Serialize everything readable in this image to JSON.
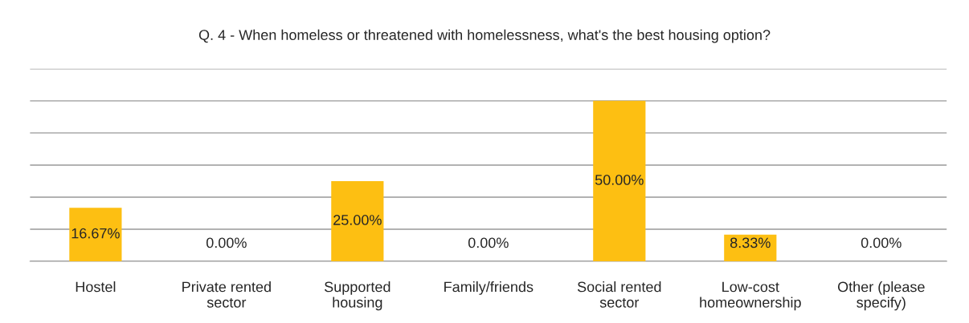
{
  "chart_data": {
    "type": "bar",
    "title": "Q. 4 - When homeless or threatened with homelessness, what's the best housing option?",
    "categories": [
      "Hostel",
      "Private rented\nsector",
      "Supported\nhousing",
      "Family/friends",
      "Social rented\nsector",
      "Low-cost\nhomeownership",
      "Other (please\nspecify)"
    ],
    "values": [
      16.67,
      0,
      25,
      0,
      50,
      8.33,
      0
    ],
    "value_labels": [
      "16.67%",
      "0.00%",
      "25.00%",
      "0.00%",
      "50.00%",
      "8.33%",
      "0.00%"
    ],
    "color": "#fdbf12",
    "ylim": [
      0,
      60
    ],
    "yticks": [
      {
        "value": 0,
        "label": null
      },
      {
        "value": 10,
        "label": null
      },
      {
        "value": 20,
        "label": null
      },
      {
        "value": 30,
        "label": null
      },
      {
        "value": 40,
        "label": null
      },
      {
        "value": 50,
        "label": null
      },
      {
        "value": 60,
        "label": null
      }
    ],
    "grid": "y",
    "tick_labels": "x"
  }
}
